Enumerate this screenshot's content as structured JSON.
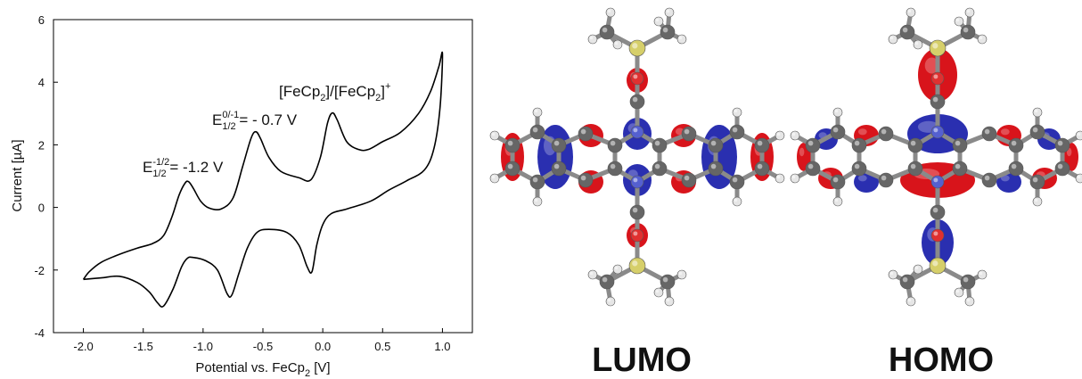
{
  "chart_data": {
    "type": "line",
    "ylabel": "Current [µA]",
    "xlabel": [
      {
        "text": "Potential vs. FeCp"
      },
      {
        "text": "2",
        "sub": true
      },
      {
        "text": " [V]"
      }
    ],
    "xlim": [
      -2.25,
      1.25
    ],
    "ylim": [
      -4,
      6
    ],
    "xticks": [
      {
        "value": -2,
        "label": "-2.0"
      },
      -1.5,
      {
        "value": -1,
        "label": "-1.0"
      },
      -0.5,
      {
        "value": 0,
        "label": "0.0"
      },
      0.5,
      {
        "value": 1,
        "label": "1.0"
      }
    ],
    "yticks": [
      -4,
      -2,
      0,
      2,
      4,
      6
    ],
    "x": [
      -2.0,
      -1.95,
      -1.85,
      -1.7,
      -1.55,
      -1.42,
      -1.33,
      -1.26,
      -1.2,
      -1.15,
      -1.12,
      -1.08,
      -1.02,
      -0.95,
      -0.85,
      -0.75,
      -0.67,
      -0.6,
      -0.56,
      -0.52,
      -0.45,
      -0.35,
      -0.2,
      -0.1,
      -0.02,
      0.04,
      0.08,
      0.12,
      0.2,
      0.3,
      0.38,
      0.5,
      0.65,
      0.8,
      0.9,
      0.97,
      1.0,
      0.98,
      0.93,
      0.85,
      0.7,
      0.55,
      0.4,
      0.2,
      0.07,
      0.0,
      -0.05,
      -0.09,
      -0.13,
      -0.2,
      -0.3,
      -0.45,
      -0.55,
      -0.63,
      -0.7,
      -0.76,
      -0.8,
      -0.88,
      -0.98,
      -1.08,
      -1.13,
      -1.18,
      -1.25,
      -1.33,
      -1.38,
      -1.45,
      -1.55,
      -1.7,
      -1.85,
      -2.0
    ],
    "series": [
      {
        "color": "#000000",
        "values": [
          -2.3,
          -2.05,
          -1.75,
          -1.5,
          -1.3,
          -1.15,
          -0.9,
          -0.3,
          0.4,
          0.78,
          0.82,
          0.6,
          0.2,
          -0.02,
          -0.05,
          0.3,
          1.3,
          2.2,
          2.42,
          2.2,
          1.6,
          1.15,
          0.95,
          0.88,
          1.6,
          2.7,
          3.02,
          2.8,
          2.1,
          1.85,
          1.85,
          2.1,
          2.4,
          3.0,
          3.7,
          4.5,
          4.9,
          3.2,
          1.9,
          1.2,
          0.85,
          0.55,
          0.2,
          -0.05,
          -0.2,
          -0.55,
          -1.2,
          -2.05,
          -1.9,
          -1.2,
          -0.8,
          -0.7,
          -0.8,
          -1.3,
          -2.1,
          -2.8,
          -2.75,
          -2.0,
          -1.7,
          -1.6,
          -1.62,
          -1.9,
          -2.6,
          -3.15,
          -3.05,
          -2.7,
          -2.4,
          -2.2,
          -2.25,
          -2.3
        ]
      }
    ],
    "annotations": [
      [
        {
          "text": "E"
        },
        {
          "text": "-1/2",
          "sup": true
        },
        {
          "text": "1/2",
          "sub": true
        },
        {
          "text": "= -1.2 V"
        }
      ],
      [
        {
          "text": "E"
        },
        {
          "text": "0/-1",
          "sup": true
        },
        {
          "text": "1/2",
          "sub": true
        },
        {
          "text": "= - 0.7 V"
        }
      ],
      [
        {
          "text": "[FeCp"
        },
        {
          "text": "2",
          "sub": true
        },
        {
          "text": "]/[FeCp"
        },
        {
          "text": "2",
          "sub": true
        },
        {
          "text": "]"
        },
        {
          "text": "+",
          "sup": true
        }
      ]
    ]
  },
  "orbital_labels": [
    "LUMO",
    "HOMO"
  ]
}
